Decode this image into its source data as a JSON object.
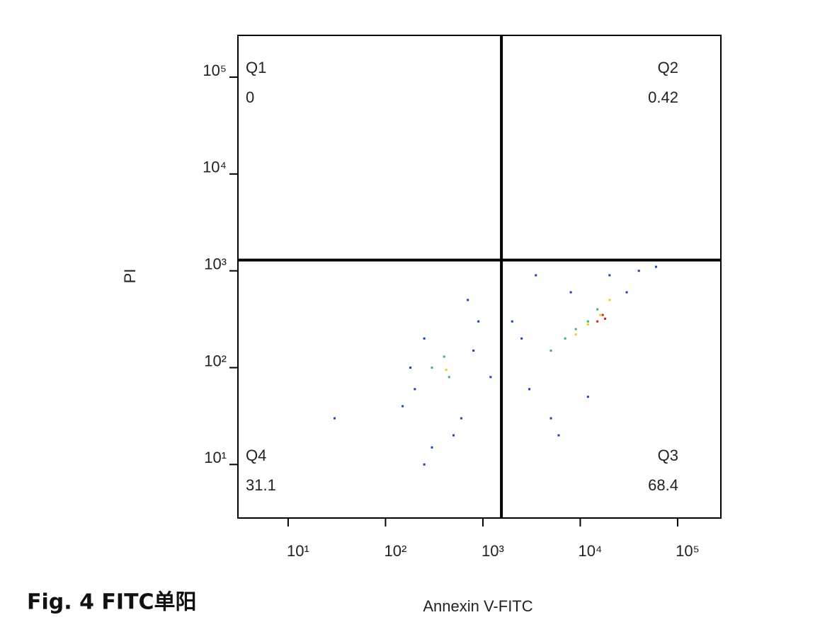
{
  "chart_data": {
    "type": "scatter",
    "caption": "Fig. 4  FITC单阳",
    "xlabel": "Annexin V-FITC",
    "ylabel": "PI",
    "xscale": "log",
    "yscale": "log",
    "xlim": [
      3.05,
      278000
    ],
    "ylim": [
      2.8,
      270000
    ],
    "xticks": [
      {
        "value": 10,
        "label": "10¹"
      },
      {
        "value": 100,
        "label": "10²"
      },
      {
        "value": 1000,
        "label": "10³"
      },
      {
        "value": 10000,
        "label": "10⁴"
      },
      {
        "value": 100000,
        "label": "10⁵"
      }
    ],
    "yticks": [
      {
        "value": 10,
        "label": "10¹"
      },
      {
        "value": 100,
        "label": "10²"
      },
      {
        "value": 1000,
        "label": "10³"
      },
      {
        "value": 10000,
        "label": "10⁴"
      },
      {
        "value": 100000,
        "label": "10⁵"
      }
    ],
    "gate": {
      "x": 1550,
      "y": 1290,
      "color": "#000000"
    },
    "quadrants": [
      {
        "name": "Q1",
        "value": 0,
        "corner": "top-left"
      },
      {
        "name": "Q2",
        "value": 0.42,
        "corner": "top-right"
      },
      {
        "name": "Q3",
        "value": 68.4,
        "corner": "bottom-right"
      },
      {
        "name": "Q4",
        "value": 31.1,
        "corner": "bottom-left"
      }
    ],
    "series": [
      {
        "color": "#1f3fbf",
        "x": [
          150,
          250,
          600,
          900,
          300,
          200,
          500,
          800,
          3000,
          5000,
          2500,
          8000,
          20000,
          40000,
          60000,
          3500,
          1200,
          700,
          180,
          30,
          250,
          6000,
          12000,
          30000,
          2000
        ],
        "y": [
          40,
          200,
          30,
          300,
          15,
          60,
          20,
          150,
          60,
          30,
          200,
          600,
          900,
          1000,
          1100,
          900,
          80,
          500,
          100,
          30,
          10,
          20,
          50,
          600,
          300
        ]
      },
      {
        "color": "#3cb371",
        "x": [
          300,
          450,
          400,
          7000,
          9000,
          5000,
          15000,
          12000
        ],
        "y": [
          100,
          80,
          130,
          200,
          250,
          150,
          400,
          300
        ]
      },
      {
        "color": "#e8d020",
        "x": [
          420,
          12000,
          16000,
          9000,
          20000
        ],
        "y": [
          95,
          280,
          350,
          220,
          500
        ]
      },
      {
        "color": "#e02010",
        "x": [
          15000,
          17000,
          18000
        ],
        "y": [
          300,
          350,
          320
        ]
      }
    ]
  }
}
